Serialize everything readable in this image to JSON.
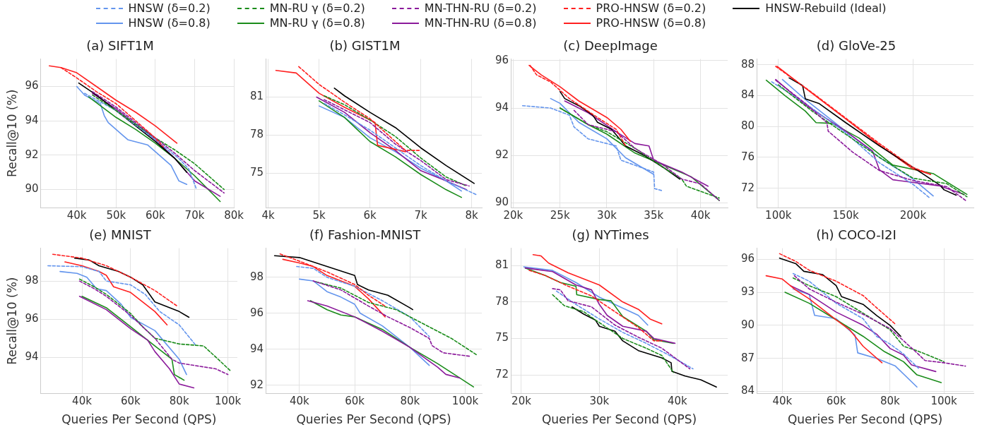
{
  "chart_data": [
    {
      "type": "line",
      "title": "(a) SIFT1M",
      "ylabel": "Recall@10 (%)",
      "legend": "top",
      "grid": true,
      "xlim": [
        30800,
        80000
      ],
      "xticks": [
        {
          "value": 40000,
          "label": "40k"
        },
        {
          "value": 50000,
          "label": "50k"
        },
        {
          "value": 60000,
          "label": "60k"
        },
        {
          "value": 70000,
          "label": "70k"
        },
        {
          "value": 80000,
          "label": "80k"
        }
      ],
      "ylim": [
        88.95,
        97.6
      ],
      "yticks": [
        90,
        92,
        94,
        96
      ],
      "series": [
        {
          "name": "HNSW (δ=0.2)",
          "color": "#6495ed",
          "line_style": "dashed",
          "x": [
            42000,
            50000,
            60000,
            66000,
            68500,
            70500
          ],
          "values": [
            95.6,
            94.6,
            92.9,
            91.8,
            91.2,
            90.0
          ]
        },
        {
          "name": "HNSW (δ=0.8)",
          "color": "#6495ed",
          "line_style": "solid",
          "x": [
            40000,
            42000,
            46000,
            47000,
            48000,
            52000,
            53000,
            58000,
            60000,
            64000,
            66000,
            68000
          ],
          "values": [
            96.0,
            95.5,
            95.0,
            94.3,
            93.9,
            93.1,
            92.9,
            92.6,
            92.2,
            91.4,
            90.5,
            90.3
          ]
        },
        {
          "name": "MN-RU γ (δ=0.2)",
          "color": "#1a8c1a",
          "line_style": "dashed",
          "x": [
            44000,
            50000,
            60000,
            65000,
            70000,
            77500
          ],
          "values": [
            95.5,
            94.6,
            93.0,
            92.3,
            91.5,
            90.0
          ]
        },
        {
          "name": "MN-RU γ (δ=0.8)",
          "color": "#1a8c1a",
          "line_style": "solid",
          "x": [
            43000,
            50000,
            55000,
            60000,
            65000,
            70000,
            76500
          ],
          "values": [
            95.4,
            94.2,
            93.5,
            92.7,
            91.8,
            90.8,
            89.3
          ]
        },
        {
          "name": "MN-THN-RU (δ=0.2)",
          "color": "#8b1a9b",
          "line_style": "dashed",
          "x": [
            44000,
            50000,
            60000,
            65000,
            70000,
            77500
          ],
          "values": [
            95.7,
            94.8,
            93.0,
            92.1,
            91.1,
            89.8
          ]
        },
        {
          "name": "MN-THN-RU (δ=0.8)",
          "color": "#8b1a9b",
          "line_style": "solid",
          "x": [
            44000,
            50000,
            60000,
            65000,
            70000,
            76500
          ],
          "values": [
            95.6,
            94.7,
            92.9,
            91.8,
            90.5,
            89.6
          ]
        },
        {
          "name": "PRO-HNSW (δ=0.2)",
          "color": "#ff2020",
          "line_style": "dashed",
          "x": [
            36000,
            40000,
            45000,
            50000,
            55000,
            60000,
            62000
          ],
          "values": [
            97.1,
            96.5,
            95.7,
            95.0,
            94.0,
            93.0,
            92.5
          ]
        },
        {
          "name": "PRO-HNSW (δ=0.8)",
          "color": "#ff2020",
          "line_style": "solid",
          "x": [
            33000,
            36000,
            40000,
            45000,
            50000,
            55000,
            60000,
            65500
          ],
          "values": [
            97.2,
            97.1,
            96.8,
            96.0,
            95.2,
            94.5,
            93.7,
            92.7
          ]
        },
        {
          "name": "HNSW-Rebuild (Ideal)",
          "color": "#000000",
          "line_style": "solid",
          "x": [
            40500,
            45000,
            50000,
            55000,
            60000,
            65000,
            68000
          ],
          "values": [
            96.2,
            95.5,
            94.6,
            93.7,
            92.8,
            91.8,
            91.0
          ]
        }
      ]
    },
    {
      "type": "line",
      "title": "(b) GIST1M",
      "grid": true,
      "xlim": [
        3950,
        8200
      ],
      "xticks": [
        {
          "value": 4000,
          "label": "4k"
        },
        {
          "value": 5000,
          "label": "5k"
        },
        {
          "value": 6000,
          "label": "6k"
        },
        {
          "value": 7000,
          "label": "7k"
        },
        {
          "value": 8000,
          "label": "8k"
        }
      ],
      "ylim": [
        72.3,
        84
      ],
      "yticks": [
        75,
        78,
        81
      ],
      "series": [
        {
          "color": "#6495ed",
          "line_style": "dashed",
          "x": [
            5100,
            5500,
            6000,
            6500,
            7000,
            7500,
            8100
          ],
          "values": [
            80.5,
            79.6,
            78.4,
            77.0,
            75.6,
            74.4,
            73.3
          ]
        },
        {
          "color": "#6495ed",
          "line_style": "solid",
          "x": [
            5000,
            5500,
            6000,
            6500,
            7000,
            7500,
            7800
          ],
          "values": [
            80.3,
            79.4,
            77.8,
            76.7,
            75.4,
            74.4,
            73.6
          ]
        },
        {
          "color": "#1a8c1a",
          "line_style": "dashed",
          "x": [
            5100,
            5500,
            6000,
            6500,
            7000,
            7500,
            7900
          ],
          "values": [
            81.1,
            80.4,
            79.2,
            77.9,
            76.2,
            74.7,
            74.0
          ]
        },
        {
          "color": "#1a8c1a",
          "line_style": "solid",
          "x": [
            5000,
            5500,
            6000,
            6500,
            7000,
            7500,
            7800
          ],
          "values": [
            80.7,
            79.4,
            77.5,
            76.3,
            74.9,
            73.7,
            73.1
          ]
        },
        {
          "color": "#8b1a9b",
          "line_style": "dashed",
          "x": [
            5100,
            5500,
            6000,
            6500,
            7000,
            7500,
            7950
          ],
          "values": [
            80.8,
            80.0,
            79.0,
            77.3,
            76.0,
            74.5,
            74.0
          ]
        },
        {
          "color": "#8b1a9b",
          "line_style": "solid",
          "x": [
            4950,
            5500,
            6000,
            6500,
            7000,
            7500,
            7900
          ],
          "values": [
            81.0,
            79.8,
            78.2,
            76.8,
            75.2,
            74.4,
            73.7
          ]
        },
        {
          "color": "#ff2020",
          "line_style": "dashed",
          "x": [
            4600,
            5000,
            5500,
            6000,
            6500,
            6700,
            7000
          ],
          "values": [
            83.4,
            82.0,
            80.6,
            79.3,
            77.5,
            76.8,
            76.8
          ]
        },
        {
          "color": "#ff2020",
          "line_style": "solid",
          "x": [
            4150,
            4550,
            5000,
            5500,
            6100,
            6150,
            6700
          ],
          "values": [
            83.1,
            82.9,
            81.3,
            80.2,
            79.0,
            77.2,
            76.7
          ]
        },
        {
          "color": "#000000",
          "line_style": "solid",
          "x": [
            5300,
            5500,
            6000,
            6500,
            7000,
            7500,
            8050
          ],
          "values": [
            81.7,
            81.1,
            79.8,
            78.6,
            77.0,
            75.6,
            74.2
          ]
        }
      ]
    },
    {
      "type": "line",
      "title": "(c) DeepImage",
      "grid": true,
      "xlim": [
        19750,
        42900
      ],
      "xticks": [
        {
          "value": 20000,
          "label": "20k"
        },
        {
          "value": 25000,
          "label": "25k"
        },
        {
          "value": 30000,
          "label": "30k"
        },
        {
          "value": 35000,
          "label": "35k"
        },
        {
          "value": 40000,
          "label": "40k"
        }
      ],
      "ylim": [
        89.8,
        96.07
      ],
      "yticks": [
        90,
        92,
        94,
        96
      ],
      "series": [
        {
          "color": "#6495ed",
          "line_style": "dashed",
          "x": [
            21000,
            24000,
            26000,
            26500,
            28000,
            31000,
            31500,
            35000,
            35100,
            36000
          ],
          "values": [
            94.1,
            94.0,
            93.7,
            93.2,
            92.7,
            92.4,
            91.8,
            91.3,
            90.6,
            90.5
          ]
        },
        {
          "color": "#6495ed",
          "line_style": "solid",
          "x": [
            24000,
            25000,
            27000,
            30000,
            32000,
            35000
          ],
          "values": [
            94.4,
            94.2,
            93.4,
            92.7,
            91.9,
            91.2
          ]
        },
        {
          "color": "#1a8c1a",
          "line_style": "dashed",
          "x": [
            25000,
            28000,
            30000,
            33000,
            36000,
            38000,
            38500,
            42000
          ],
          "values": [
            94.0,
            93.3,
            93.0,
            92.3,
            91.5,
            91.0,
            90.7,
            90.2
          ]
        },
        {
          "color": "#1a8c1a",
          "line_style": "solid",
          "x": [
            25000,
            28000,
            30000,
            33000,
            36000,
            39000,
            42000
          ],
          "values": [
            94.0,
            93.3,
            92.9,
            92.1,
            91.6,
            91.1,
            90.1
          ]
        },
        {
          "color": "#8b1a9b",
          "line_style": "dashed",
          "x": [
            26500,
            28000,
            31000,
            33000,
            36000,
            38000,
            40000,
            42000
          ],
          "values": [
            93.9,
            93.3,
            93.0,
            92.3,
            91.6,
            91.0,
            90.8,
            90.1
          ]
        },
        {
          "color": "#8b1a9b",
          "line_style": "solid",
          "x": [
            25500,
            28000,
            31000,
            33000,
            34500,
            35000,
            38000,
            40800
          ],
          "values": [
            94.3,
            93.8,
            93.0,
            92.5,
            92.4,
            91.8,
            91.3,
            90.7
          ]
        },
        {
          "color": "#ff2020",
          "line_style": "dashed",
          "x": [
            21800,
            22500,
            24000,
            26000,
            29000,
            31000,
            32000
          ],
          "values": [
            95.8,
            95.4,
            95.1,
            94.4,
            93.6,
            93.1,
            92.4
          ]
        },
        {
          "color": "#ff2020",
          "line_style": "solid",
          "x": [
            21700,
            23000,
            25000,
            27000,
            30000,
            31500,
            32500
          ],
          "values": [
            95.8,
            95.4,
            94.9,
            94.3,
            93.6,
            93.1,
            92.6
          ]
        },
        {
          "color": "#000000",
          "line_style": "solid",
          "x": [
            25000,
            25500,
            27000,
            28500,
            29000,
            30500,
            32000,
            34000,
            36000,
            37800
          ],
          "values": [
            94.7,
            94.4,
            94.1,
            93.7,
            93.4,
            93.1,
            92.4,
            92.0,
            91.5,
            91.0
          ]
        }
      ]
    },
    {
      "type": "line",
      "title": "(d) GloVe-25",
      "grid": true,
      "xlim": [
        83900,
        244900
      ],
      "xticks": [
        {
          "value": 100000,
          "label": "100k"
        },
        {
          "value": 150000,
          "label": "150k"
        },
        {
          "value": 200000,
          "label": "200k"
        }
      ],
      "ylim": [
        69.5,
        88.75
      ],
      "yticks": [
        72,
        76,
        80,
        84,
        88
      ],
      "series": [
        {
          "color": "#6495ed",
          "line_style": "dashed",
          "x": [
            95000,
            120000,
            150000,
            175000,
            200000,
            212000
          ],
          "values": [
            85.8,
            83.0,
            79.2,
            75.3,
            72.5,
            70.8
          ]
        },
        {
          "color": "#6495ed",
          "line_style": "solid",
          "x": [
            103000,
            120000,
            150000,
            175000,
            200000,
            215000
          ],
          "values": [
            86.1,
            83.5,
            79.4,
            76.0,
            73.2,
            71.0
          ]
        },
        {
          "color": "#1a8c1a",
          "line_style": "dashed",
          "x": [
            100000,
            125000,
            150000,
            175000,
            200000,
            225000,
            240000
          ],
          "values": [
            85.4,
            82.0,
            79.0,
            76.0,
            73.3,
            72.6,
            70.9
          ]
        },
        {
          "color": "#1a8c1a",
          "line_style": "solid",
          "x": [
            91000,
            105000,
            120000,
            128000,
            140000,
            160000,
            185000,
            215000,
            240000
          ],
          "values": [
            86.0,
            84.0,
            82.0,
            80.5,
            80.4,
            78.5,
            75.0,
            73.9,
            71.2
          ]
        },
        {
          "color": "#8b1a9b",
          "line_style": "dashed",
          "x": [
            98000,
            120000,
            136000,
            137000,
            155000,
            175000,
            200000,
            225000,
            240000
          ],
          "values": [
            86.0,
            83.0,
            80.5,
            79.4,
            76.7,
            74.3,
            73.0,
            72.2,
            70.3
          ]
        },
        {
          "color": "#8b1a9b",
          "line_style": "solid",
          "x": [
            98000,
            120000,
            150000,
            170000,
            175000,
            185000,
            220000,
            238000
          ],
          "values": [
            86.1,
            82.8,
            79.4,
            76.8,
            74.4,
            73.1,
            72.3,
            71.2
          ]
        },
        {
          "color": "#ff2020",
          "line_style": "dashed",
          "x": [
            98000,
            125000,
            150000,
            175000,
            200000,
            213000
          ],
          "values": [
            87.8,
            84.4,
            81.1,
            77.8,
            74.7,
            73.8
          ]
        },
        {
          "color": "#ff2020",
          "line_style": "solid",
          "x": [
            99000,
            125000,
            150000,
            175000,
            200000,
            213000
          ],
          "values": [
            87.8,
            84.3,
            81.0,
            77.6,
            74.5,
            73.8
          ]
        },
        {
          "color": "#000000",
          "line_style": "solid",
          "x": [
            108000,
            118000,
            120000,
            130000,
            150000,
            175000,
            200000,
            220000,
            223000,
            232000
          ],
          "values": [
            86.3,
            85.3,
            83.6,
            83.0,
            80.5,
            77.5,
            74.7,
            72.4,
            71.8,
            71.1
          ]
        }
      ]
    },
    {
      "type": "line",
      "title": "(e) MNIST",
      "xlabel": "Queries Per Second (QPS)",
      "ylabel": "Recall@10 (%)",
      "grid": true,
      "xlim": [
        23000,
        103900
      ],
      "xticks": [
        {
          "value": 40000,
          "label": "40k"
        },
        {
          "value": 60000,
          "label": "60k"
        },
        {
          "value": 80000,
          "label": "80k"
        },
        {
          "value": 100000,
          "label": "100k"
        }
      ],
      "ylim": [
        92.1,
        99.72
      ],
      "yticks": [
        94,
        96,
        98
      ],
      "series": [
        {
          "color": "#6495ed",
          "line_style": "dashed",
          "x": [
            26000,
            40000,
            47000,
            50000,
            60000,
            66000,
            72000,
            80000,
            87000
          ],
          "values": [
            98.8,
            98.75,
            98.5,
            98.0,
            97.8,
            97.3,
            96.4,
            95.7,
            94.6
          ]
        },
        {
          "color": "#6495ed",
          "line_style": "solid",
          "x": [
            31000,
            38000,
            42000,
            46000,
            50000,
            56000,
            60000,
            70000,
            80000,
            83000
          ],
          "values": [
            98.5,
            98.4,
            98.2,
            97.6,
            97.5,
            96.8,
            96.1,
            95.4,
            93.9,
            93.1
          ]
        },
        {
          "color": "#1a8c1a",
          "line_style": "dashed",
          "x": [
            39000,
            45000,
            50000,
            60000,
            65000,
            70000,
            80000,
            90000,
            96000,
            101000
          ],
          "values": [
            98.1,
            97.7,
            97.3,
            96.3,
            95.6,
            95.0,
            94.7,
            94.6,
            93.9,
            93.3
          ]
        },
        {
          "color": "#1a8c1a",
          "line_style": "solid",
          "x": [
            40000,
            50000,
            60000,
            70000,
            77000,
            78000,
            82000
          ],
          "values": [
            97.2,
            96.6,
            95.6,
            94.6,
            93.9,
            93.1,
            92.8
          ]
        },
        {
          "color": "#8b1a9b",
          "line_style": "dashed",
          "x": [
            39000,
            45000,
            50000,
            60000,
            70000,
            77000,
            80000,
            95000,
            100000
          ],
          "values": [
            98.0,
            97.6,
            97.2,
            96.2,
            95.0,
            93.9,
            93.7,
            93.4,
            93.1
          ]
        },
        {
          "color": "#8b1a9b",
          "line_style": "solid",
          "x": [
            39000,
            50000,
            60000,
            67000,
            70000,
            76000,
            80000,
            86000
          ],
          "values": [
            97.2,
            96.5,
            95.5,
            94.9,
            94.3,
            93.4,
            92.6,
            92.4
          ]
        },
        {
          "color": "#ff2020",
          "line_style": "dashed",
          "x": [
            28000,
            40000,
            50000,
            60000,
            70000,
            79000
          ],
          "values": [
            99.4,
            99.2,
            98.8,
            98.2,
            97.5,
            96.7
          ]
        },
        {
          "color": "#ff2020",
          "line_style": "solid",
          "x": [
            33000,
            40000,
            47000,
            50000,
            53000,
            60000,
            65000,
            70000,
            75000
          ],
          "values": [
            99.0,
            98.8,
            98.5,
            98.3,
            97.7,
            97.4,
            96.9,
            96.4,
            95.7
          ]
        },
        {
          "color": "#000000",
          "line_style": "solid",
          "x": [
            37000,
            43000,
            47000,
            55000,
            60000,
            65000,
            70000,
            80000,
            84000
          ],
          "values": [
            99.2,
            99.1,
            98.8,
            98.5,
            98.2,
            97.8,
            96.9,
            96.4,
            96.1
          ]
        }
      ]
    },
    {
      "type": "line",
      "title": "(f) Fashion-MNIST",
      "xlabel": "Queries Per Second (QPS)",
      "grid": true,
      "xlim": [
        27800,
        106000
      ],
      "xticks": [
        {
          "value": 40000,
          "label": "40k"
        },
        {
          "value": 60000,
          "label": "60k"
        },
        {
          "value": 80000,
          "label": "80k"
        },
        {
          "value": 100000,
          "label": "100k"
        }
      ],
      "ylim": [
        91.53,
        99.62
      ],
      "yticks": [
        92,
        94,
        96,
        98
      ],
      "series": [
        {
          "color": "#6495ed",
          "line_style": "dashed",
          "x": [
            39000,
            45000,
            50000,
            60000,
            70000,
            80000,
            87000
          ],
          "values": [
            98.6,
            98.5,
            98.0,
            97.5,
            96.7,
            95.8,
            94.7
          ]
        },
        {
          "color": "#6495ed",
          "line_style": "solid",
          "x": [
            40000,
            45000,
            50000,
            55000,
            60000,
            62000,
            70000,
            80000,
            87000
          ],
          "values": [
            97.9,
            97.8,
            97.2,
            96.9,
            96.5,
            96.0,
            95.3,
            94.1,
            93.1
          ]
        },
        {
          "color": "#1a8c1a",
          "line_style": "dashed",
          "x": [
            46000,
            55000,
            65000,
            75000,
            85000,
            95000,
            104000
          ],
          "values": [
            97.75,
            97.4,
            96.6,
            96.2,
            95.4,
            94.6,
            93.7
          ]
        },
        {
          "color": "#1a8c1a",
          "line_style": "solid",
          "x": [
            44000,
            50000,
            55000,
            60000,
            70000,
            80000,
            90000,
            98000,
            103000
          ],
          "values": [
            96.7,
            96.2,
            95.9,
            95.8,
            95.1,
            94.1,
            93.2,
            92.4,
            91.9
          ]
        },
        {
          "color": "#8b1a9b",
          "line_style": "dashed",
          "x": [
            45000,
            55000,
            65000,
            72000,
            80000,
            87000,
            88000,
            92000,
            102000
          ],
          "values": [
            97.8,
            97.3,
            96.4,
            95.8,
            95.2,
            94.6,
            94.2,
            93.8,
            93.6
          ]
        },
        {
          "color": "#8b1a9b",
          "line_style": "solid",
          "x": [
            43000,
            50000,
            60000,
            70000,
            80000,
            90000,
            93000,
            98000
          ],
          "values": [
            96.7,
            96.4,
            95.8,
            95.0,
            94.1,
            93.0,
            92.6,
            92.4
          ]
        },
        {
          "color": "#ff2020",
          "line_style": "dashed",
          "x": [
            33000,
            40000,
            50000,
            60000,
            65000,
            71000
          ],
          "values": [
            99.3,
            98.9,
            98.3,
            97.6,
            97.0,
            96.4
          ]
        },
        {
          "color": "#ff2020",
          "line_style": "solid",
          "x": [
            34000,
            40000,
            45000,
            50000,
            60000,
            65000,
            71000
          ],
          "values": [
            99.0,
            98.8,
            98.6,
            98.1,
            97.5,
            96.8,
            95.8
          ]
        },
        {
          "color": "#000000",
          "line_style": "solid",
          "x": [
            31000,
            40000,
            50000,
            60000,
            61000,
            65000,
            72000,
            80000,
            81000
          ],
          "values": [
            99.2,
            99.1,
            98.6,
            98.1,
            97.6,
            97.3,
            97.0,
            96.3,
            96.2
          ]
        }
      ]
    },
    {
      "type": "line",
      "title": "(g) NYTimes",
      "xlabel": "Queries Per Second (QPS)",
      "grid": true,
      "xlim": [
        18650,
        46450
      ],
      "xticks": [
        {
          "value": 20000,
          "label": "20k"
        },
        {
          "value": 30000,
          "label": "30k"
        },
        {
          "value": 40000,
          "label": "40k"
        }
      ],
      "ylim": [
        70.46,
        82.43
      ],
      "yticks": [
        72,
        75,
        78,
        81
      ],
      "series": [
        {
          "color": "#6495ed",
          "line_style": "dashed",
          "x": [
            24500,
            27000,
            30000,
            33000,
            36000,
            39000,
            42000
          ],
          "values": [
            78.9,
            77.8,
            76.6,
            75.5,
            74.6,
            73.6,
            72.5
          ]
        },
        {
          "color": "#6495ed",
          "line_style": "solid",
          "x": [
            20300,
            24000,
            27000,
            30000,
            33000,
            35000,
            36200
          ],
          "values": [
            80.9,
            80.6,
            79.6,
            78.4,
            77.5,
            76.9,
            76.1
          ]
        },
        {
          "color": "#1a8c1a",
          "line_style": "dashed",
          "x": [
            24000,
            25500,
            28000,
            30000,
            33000,
            36000,
            38000,
            39500
          ],
          "values": [
            78.6,
            77.7,
            77.2,
            76.3,
            75.0,
            74.2,
            73.6,
            72.2
          ]
        },
        {
          "color": "#1a8c1a",
          "line_style": "solid",
          "x": [
            20500,
            23000,
            25000,
            27000,
            27100,
            30000,
            31500,
            33000,
            36000,
            37000,
            39500
          ],
          "values": [
            80.8,
            80.2,
            79.6,
            79.3,
            78.6,
            78.2,
            78.1,
            76.8,
            75.6,
            74.9,
            74.6
          ]
        },
        {
          "color": "#8b1a9b",
          "line_style": "dashed",
          "x": [
            24000,
            25000,
            26000,
            29000,
            32000,
            35000,
            38000,
            41600
          ],
          "values": [
            79.1,
            79.0,
            78.1,
            77.6,
            76.1,
            75.1,
            74.2,
            72.5
          ]
        },
        {
          "color": "#8b1a9b",
          "line_style": "solid",
          "x": [
            20500,
            24000,
            27000,
            29000,
            30000,
            31000,
            33000,
            36000,
            37000,
            39700
          ],
          "values": [
            80.8,
            80.5,
            79.4,
            79.0,
            77.8,
            76.9,
            76.0,
            75.6,
            75.0,
            74.6
          ]
        },
        {
          "color": "#ff2020",
          "line_style": "dashed",
          "x": [
            21000,
            23000,
            26000,
            29000,
            32000,
            35000,
            37000,
            38000
          ],
          "values": [
            80.6,
            80.2,
            79.3,
            78.5,
            77.2,
            75.9,
            74.8,
            74.8
          ]
        },
        {
          "color": "#ff2020",
          "line_style": "solid",
          "x": [
            21500,
            22500,
            23500,
            26000,
            30000,
            33000,
            35000,
            36500,
            38000
          ],
          "values": [
            81.9,
            81.8,
            81.2,
            80.4,
            79.4,
            78.0,
            77.4,
            76.6,
            76.2
          ]
        },
        {
          "color": "#000000",
          "line_style": "solid",
          "x": [
            26500,
            28000,
            29500,
            30000,
            32000,
            33000,
            35000,
            38000,
            39200,
            39300,
            41000,
            43000,
            45000
          ],
          "values": [
            77.6,
            77.0,
            76.5,
            76.0,
            75.6,
            74.8,
            74.0,
            73.4,
            73.0,
            72.3,
            71.9,
            71.6,
            71.0
          ]
        }
      ]
    },
    {
      "type": "line",
      "title": "(h) COCO-I2I",
      "xlabel": "Queries Per Second (QPS)",
      "grid": true,
      "xlim": [
        30500,
        111000
      ],
      "xticks": [
        {
          "value": 40000,
          "label": "40k"
        },
        {
          "value": 60000,
          "label": "60k"
        },
        {
          "value": 80000,
          "label": "80k"
        },
        {
          "value": 100000,
          "label": "100k"
        }
      ],
      "ylim": [
        83.8,
        97.0
      ],
      "yticks": [
        84,
        87,
        90,
        93,
        96
      ],
      "series": [
        {
          "color": "#6495ed",
          "line_style": "dashed",
          "x": [
            44000,
            50000,
            60000,
            70000,
            75000,
            80000,
            85000,
            91000
          ],
          "values": [
            94.7,
            94.0,
            92.0,
            90.6,
            89.0,
            88.3,
            87.4,
            86.0
          ]
        },
        {
          "color": "#6495ed",
          "line_style": "solid",
          "x": [
            44000,
            50000,
            52000,
            60000,
            67000,
            68000,
            75000,
            82000,
            90000
          ],
          "values": [
            93.3,
            92.8,
            90.9,
            90.6,
            89.1,
            87.5,
            87.0,
            86.3,
            84.4
          ]
        },
        {
          "color": "#1a8c1a",
          "line_style": "dashed",
          "x": [
            44000,
            50000,
            60000,
            70000,
            80000,
            85000,
            90000,
            100000
          ],
          "values": [
            94.3,
            93.6,
            92.6,
            91.1,
            89.6,
            88.1,
            87.7,
            86.7
          ]
        },
        {
          "color": "#1a8c1a",
          "line_style": "solid",
          "x": [
            41000,
            50000,
            60000,
            70000,
            78000,
            85000,
            90000,
            99000
          ],
          "values": [
            93.0,
            92.0,
            90.5,
            89.0,
            87.6,
            86.7,
            85.5,
            84.8
          ]
        },
        {
          "color": "#8b1a9b",
          "line_style": "dashed",
          "x": [
            44500,
            50000,
            60000,
            70000,
            80000,
            90000,
            93000,
            100000,
            108000
          ],
          "values": [
            94.5,
            93.3,
            92.1,
            91.0,
            89.7,
            87.5,
            86.8,
            86.6,
            86.3
          ]
        },
        {
          "color": "#8b1a9b",
          "line_style": "solid",
          "x": [
            43000,
            50000,
            60000,
            70000,
            75000,
            80000,
            85000,
            88000,
            97000
          ],
          "values": [
            93.6,
            92.8,
            91.2,
            90.0,
            89.2,
            87.9,
            87.3,
            86.4,
            85.8
          ]
        },
        {
          "color": "#ff2020",
          "line_style": "dashed",
          "x": [
            39000,
            45000,
            50000,
            60000,
            70000,
            75000,
            82000
          ],
          "values": [
            96.5,
            95.8,
            95.0,
            94.0,
            92.7,
            91.6,
            90.1
          ]
        },
        {
          "color": "#ff2020",
          "line_style": "solid",
          "x": [
            34000,
            40000,
            45000,
            50000,
            60000,
            65000,
            70000,
            77000
          ],
          "values": [
            94.5,
            94.2,
            93.2,
            92.4,
            90.5,
            89.6,
            88.1,
            86.6
          ]
        },
        {
          "color": "#000000",
          "line_style": "solid",
          "x": [
            39000,
            45000,
            48000,
            55000,
            60000,
            62000,
            70000,
            75000,
            80000,
            84000
          ],
          "values": [
            96.1,
            95.6,
            94.9,
            94.6,
            93.6,
            92.6,
            91.9,
            90.9,
            90.0,
            89.0
          ]
        }
      ]
    }
  ]
}
